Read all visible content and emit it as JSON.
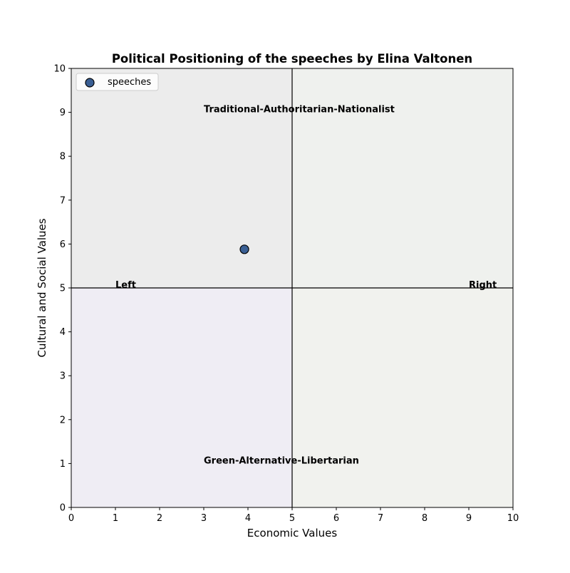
{
  "chart_data": {
    "type": "scatter",
    "title": "Political Positioning of the speeches by Elina Valtonen",
    "xlabel": "Economic Values",
    "ylabel": "Cultural and Social Values",
    "xlim": [
      0,
      10
    ],
    "ylim": [
      0,
      10
    ],
    "xticks": [
      0,
      1,
      2,
      3,
      4,
      5,
      6,
      7,
      8,
      9,
      10
    ],
    "yticks": [
      0,
      1,
      2,
      3,
      4,
      5,
      6,
      7,
      8,
      9,
      10
    ],
    "grid": false,
    "legend": {
      "placement": "upper-left",
      "entries": [
        "speeches"
      ]
    },
    "series": [
      {
        "name": "speeches",
        "color": "#3a5f94",
        "edge_color": "#000000",
        "points": [
          {
            "x": 3.92,
            "y": 5.88
          }
        ]
      }
    ],
    "quadrants": [
      {
        "x": [
          0,
          5
        ],
        "y": [
          5,
          10
        ],
        "color": "#ececec"
      },
      {
        "x": [
          5,
          10
        ],
        "y": [
          5,
          10
        ],
        "color": "#eff1ee"
      },
      {
        "x": [
          0,
          5
        ],
        "y": [
          0,
          5
        ],
        "color": "#efedf4"
      },
      {
        "x": [
          5,
          10
        ],
        "y": [
          0,
          5
        ],
        "color": "#f1f2ee"
      }
    ],
    "reference_lines": {
      "x": 5,
      "y": 5,
      "color": "#000000"
    },
    "annotations": [
      {
        "text": "Traditional-Authoritarian-Nationalist",
        "x": 3,
        "y": 9,
        "align": "left"
      },
      {
        "text": "Green-Alternative-Libertarian",
        "x": 3,
        "y": 1,
        "align": "left"
      },
      {
        "text": "Left",
        "x": 1,
        "y": 5,
        "align": "left"
      },
      {
        "text": "Right",
        "x": 9,
        "y": 5,
        "align": "left"
      }
    ]
  }
}
